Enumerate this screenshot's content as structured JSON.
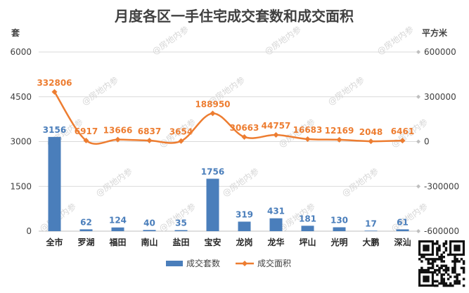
{
  "watermark": "@房地内参",
  "chart_data": {
    "type": "bar",
    "title": "月度各区一手住宅成交套数和成交面积",
    "left_axis_unit": "套",
    "right_axis_unit": "平方米",
    "categories": [
      "全市",
      "罗湖",
      "福田",
      "南山",
      "盐田",
      "宝安",
      "龙岗",
      "龙华",
      "坪山",
      "光明",
      "大鹏",
      "深汕"
    ],
    "left_axis": {
      "min": 0,
      "max": 6000,
      "ticks": [
        0,
        1500,
        3000,
        4500,
        6000
      ]
    },
    "right_axis": {
      "min": -600000,
      "max": 600000,
      "ticks": [
        -600000,
        -300000,
        0,
        300000,
        600000
      ]
    },
    "grid": true,
    "legend_position": "bottom",
    "series": [
      {
        "name": "成交套数",
        "type": "bar",
        "axis": "left",
        "color": "#4a7ebb",
        "values": [
          3156,
          62,
          124,
          40,
          35,
          1756,
          319,
          431,
          181,
          130,
          17,
          61
        ]
      },
      {
        "name": "成交面积",
        "type": "line",
        "axis": "right",
        "color": "#ed7d31",
        "values": [
          332806,
          6917,
          13666,
          6837,
          3654,
          188950,
          30663,
          44757,
          16683,
          12169,
          2048,
          6461
        ]
      }
    ]
  }
}
